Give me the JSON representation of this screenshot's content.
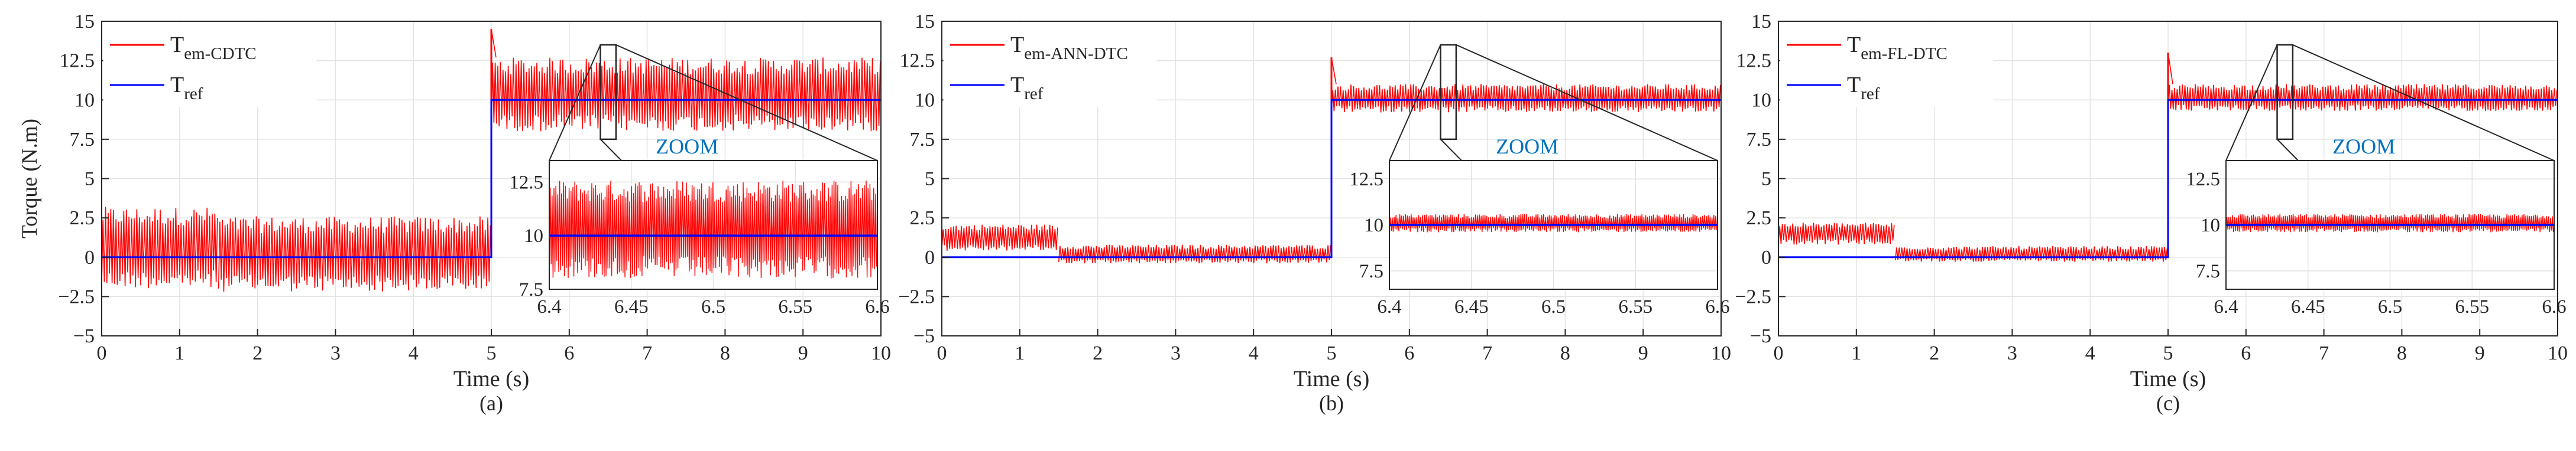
{
  "figure": {
    "shared_ylabel": "Torque (N.m)",
    "colors": {
      "measured": "#ff0000",
      "reference": "#0000ff",
      "zoom_label": "#0072bd",
      "grid": "#e3e3e3",
      "axis": "#262626"
    }
  },
  "chart_data": [
    {
      "type": "line",
      "panel_label": "(a)",
      "xlabel": "Time (s)",
      "ylabel": "Torque (N.m)",
      "xlim": [
        0,
        10
      ],
      "ylim": [
        -5,
        15
      ],
      "xticks": [
        0,
        1,
        2,
        3,
        4,
        5,
        6,
        7,
        8,
        9,
        10
      ],
      "yticks": [
        -5,
        -2.5,
        0,
        2.5,
        5,
        7.5,
        10,
        12.5,
        15
      ],
      "legend": {
        "placement": "top-left",
        "entries": [
          {
            "main": "T",
            "sub": "em-CDTC",
            "color": "#ff0000"
          },
          {
            "main": "T",
            "sub": "ref",
            "color": "#0000ff"
          }
        ]
      },
      "series": [
        {
          "name": "Tem-CDTC",
          "color": "#ff0000",
          "kind": "noisy-band",
          "segments": [
            {
              "x": [
                0,
                1.5
              ],
              "min": -2.0,
              "max": 3.2
            },
            {
              "x": [
                1.5,
                5.0
              ],
              "min": -2.2,
              "max": 2.6
            },
            {
              "x": [
                5.0,
                10.0
              ],
              "min": 8.0,
              "max": 12.7
            }
          ],
          "spike": {
            "x": 5.0,
            "y": 14.5
          }
        },
        {
          "name": "Tref",
          "color": "#0000ff",
          "x": [
            0,
            5,
            5,
            10
          ],
          "y": [
            0,
            0,
            10,
            10
          ]
        }
      ],
      "zoom": {
        "label": "ZOOM",
        "source_x": [
          6.4,
          6.6
        ],
        "source_y": [
          7.5,
          13.5
        ],
        "xlim": [
          6.4,
          6.6
        ],
        "ylim": [
          7.5,
          13.5
        ],
        "xticks": [
          6.4,
          6.45,
          6.5,
          6.55,
          6.6
        ],
        "yticks": [
          7.5,
          10,
          12.5
        ],
        "band": {
          "min": 8.0,
          "max": 12.6
        },
        "ref": 10
      }
    },
    {
      "type": "line",
      "panel_label": "(b)",
      "xlabel": "Time (s)",
      "ylabel": "",
      "xlim": [
        0,
        10
      ],
      "ylim": [
        -5,
        15
      ],
      "xticks": [
        0,
        1,
        2,
        3,
        4,
        5,
        6,
        7,
        8,
        9,
        10
      ],
      "yticks": [
        -5,
        -2.5,
        0,
        2.5,
        5,
        7.5,
        10,
        12.5,
        15
      ],
      "legend": {
        "placement": "top-left",
        "entries": [
          {
            "main": "T",
            "sub": "em-ANN-DTC",
            "color": "#ff0000"
          },
          {
            "main": "T",
            "sub": "ref",
            "color": "#0000ff"
          }
        ]
      },
      "series": [
        {
          "name": "Tem-ANN-DTC",
          "color": "#ff0000",
          "kind": "noisy-band",
          "segments": [
            {
              "x": [
                0,
                1.5
              ],
              "min": 0.4,
              "max": 2.1
            },
            {
              "x": [
                1.5,
                5.0
              ],
              "min": -0.4,
              "max": 0.8
            },
            {
              "x": [
                5.0,
                10.0
              ],
              "min": 9.2,
              "max": 11.0
            }
          ],
          "spike": {
            "x": 5.0,
            "y": 12.7
          }
        },
        {
          "name": "Tref",
          "color": "#0000ff",
          "x": [
            0,
            5,
            5,
            10
          ],
          "y": [
            0,
            0,
            10,
            10
          ]
        }
      ],
      "zoom": {
        "label": "ZOOM",
        "source_x": [
          6.4,
          6.6
        ],
        "source_y": [
          7.5,
          13.5
        ],
        "xlim": [
          6.4,
          6.6
        ],
        "ylim": [
          6.5,
          13.5
        ],
        "xticks": [
          6.4,
          6.45,
          6.5,
          6.55,
          6.6
        ],
        "yticks": [
          7.5,
          10,
          12.5
        ],
        "band": {
          "min": 9.6,
          "max": 10.6
        },
        "ref": 10
      }
    },
    {
      "type": "line",
      "panel_label": "(c)",
      "xlabel": "Time (s)",
      "ylabel": "",
      "xlim": [
        0,
        10
      ],
      "ylim": [
        -5,
        15
      ],
      "xticks": [
        0,
        1,
        2,
        3,
        4,
        5,
        6,
        7,
        8,
        9,
        10
      ],
      "yticks": [
        -5,
        -2.5,
        0,
        2.5,
        5,
        7.5,
        10,
        12.5,
        15
      ],
      "legend": {
        "placement": "top-left",
        "entries": [
          {
            "main": "T",
            "sub": "em-FL-DTC",
            "color": "#ff0000"
          },
          {
            "main": "T",
            "sub": "ref",
            "color": "#0000ff"
          }
        ]
      },
      "series": [
        {
          "name": "Tem-FL-DTC",
          "color": "#ff0000",
          "kind": "noisy-band",
          "segments": [
            {
              "x": [
                0,
                1.5
              ],
              "min": 0.8,
              "max": 2.2
            },
            {
              "x": [
                1.5,
                5.0
              ],
              "min": -0.3,
              "max": 0.7
            },
            {
              "x": [
                5.0,
                10.0
              ],
              "min": 9.3,
              "max": 11.0
            }
          ],
          "spike": {
            "x": 5.0,
            "y": 13.0
          }
        },
        {
          "name": "Tref",
          "color": "#0000ff",
          "x": [
            0,
            5,
            5,
            10
          ],
          "y": [
            0,
            0,
            10,
            10
          ]
        }
      ],
      "zoom": {
        "label": "ZOOM",
        "source_x": [
          6.4,
          6.6
        ],
        "source_y": [
          7.5,
          13.5
        ],
        "xlim": [
          6.4,
          6.6
        ],
        "ylim": [
          6.5,
          13.5
        ],
        "xticks": [
          6.4,
          6.45,
          6.5,
          6.55,
          6.6
        ],
        "yticks": [
          7.5,
          10,
          12.5
        ],
        "band": {
          "min": 9.6,
          "max": 10.6
        },
        "ref": 10
      }
    }
  ]
}
